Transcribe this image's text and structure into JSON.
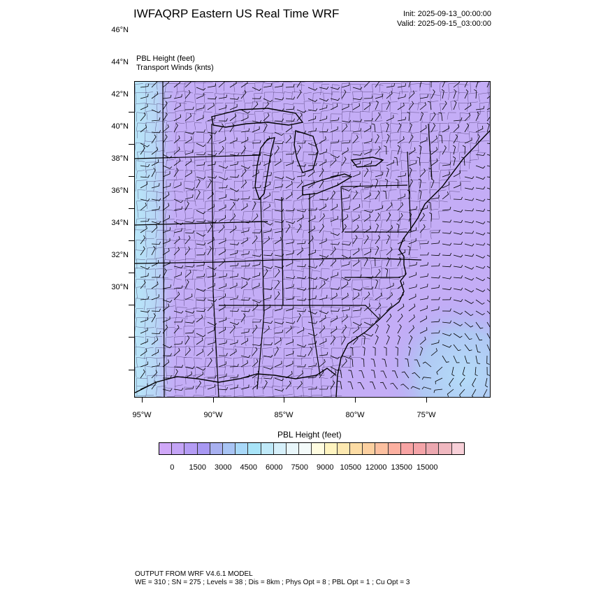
{
  "header": {
    "title": "IWFAQRP Eastern US Real Time WRF",
    "init": "Init: 2025-09-13_00:00:00",
    "valid": "Valid: 2025-09-15_03:00:00"
  },
  "fields": {
    "line1": "PBL Height   (feet)",
    "line2": "Transport Winds   (knts)"
  },
  "axes": {
    "lat_labels": [
      "46°N",
      "44°N",
      "42°N",
      "40°N",
      "38°N",
      "36°N",
      "34°N",
      "32°N",
      "30°N"
    ],
    "lon_labels": [
      "95°W",
      "90°W",
      "85°W",
      "80°W",
      "75°W"
    ]
  },
  "colorbar": {
    "title": "PBL Height  (feet)",
    "labels": [
      "0",
      "1500",
      "3000",
      "4500",
      "6000",
      "7500",
      "9000",
      "10500",
      "12000",
      "13500",
      "15000"
    ],
    "colors": [
      "#d0a8f8",
      "#c4a4f6",
      "#b49cf4",
      "#a898f2",
      "#a8b0f0",
      "#a8c4f4",
      "#a8d8f8",
      "#a8e4f8",
      "#bfe9f8",
      "#d6f0fa",
      "#e8f6fa",
      "#f4fbfa",
      "#fffce0",
      "#fff4c0",
      "#fce8b0",
      "#fcdca4",
      "#fcd0a0",
      "#fcc0a0",
      "#fcb0a0",
      "#f8a4a4",
      "#f4a4a8",
      "#eca8b0",
      "#f0b8c0",
      "#f8d0d8"
    ]
  },
  "footer": {
    "line1": "OUTPUT FROM WRF V4.6.1 MODEL",
    "line2": "WE = 310 ; SN = 275 ; Levels = 38 ; Dis = 8km ; Phys Opt = 8 ; PBL Opt = 1 ; Cu Opt = 3"
  }
}
